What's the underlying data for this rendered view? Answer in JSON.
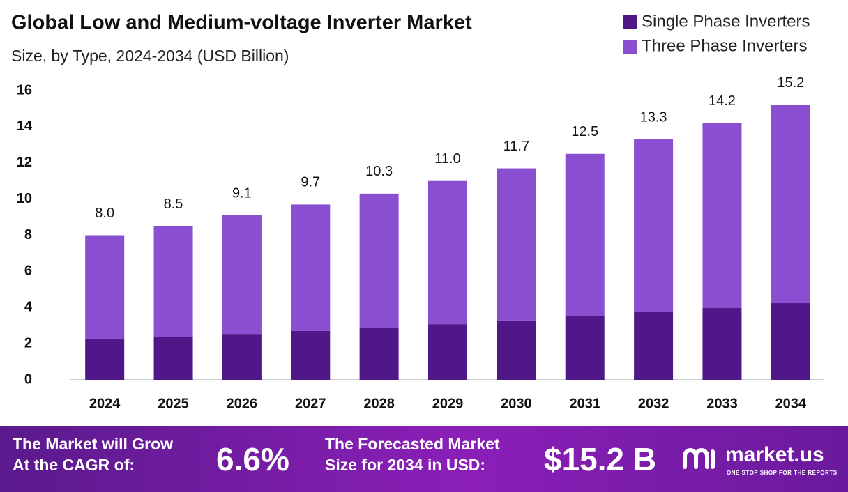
{
  "chart_data": {
    "type": "stacked_bar",
    "title": "Global Low and Medium-voltage Inverter Market",
    "subtitle": "Size, by Type, 2024-2034 (USD Billion)",
    "categories": [
      "2024",
      "2025",
      "2026",
      "2027",
      "2028",
      "2029",
      "2030",
      "2031",
      "2032",
      "2033",
      "2034"
    ],
    "series": [
      {
        "name": "Single Phase Inverters",
        "color": "#4f1787",
        "values": [
          2.24,
          2.39,
          2.54,
          2.7,
          2.89,
          3.08,
          3.28,
          3.51,
          3.74,
          3.97,
          4.24
        ]
      },
      {
        "name": "Three Phase Inverters",
        "color": "#8a4fd0",
        "values": [
          5.76,
          6.11,
          6.56,
          7.0,
          7.41,
          7.92,
          8.42,
          8.99,
          9.56,
          10.23,
          10.96
        ]
      }
    ],
    "totals": {
      "values": [
        8.0,
        8.5,
        9.1,
        9.7,
        10.3,
        11.0,
        11.7,
        12.5,
        13.3,
        14.2,
        15.2
      ],
      "value_labels": [
        "8.0",
        "8.5",
        "9.1",
        "9.7",
        "10.3",
        "11.0",
        "11.7",
        "12.5",
        "13.3",
        "14.2",
        "15.2"
      ]
    },
    "ylim": [
      0,
      16
    ],
    "yticks": [
      0,
      2,
      4,
      6,
      8,
      10,
      12,
      14,
      16
    ],
    "grid": false,
    "legend": "top-right"
  },
  "footer": {
    "cagr_text": [
      "The Market will Grow",
      "At the CAGR of:"
    ],
    "cagr_value": "6.6%",
    "forecast_text": [
      "The Forecasted Market",
      "Size for 2034 in USD:"
    ],
    "forecast_value": "$15.2 B",
    "brand": "market.us",
    "tagline": "ONE STOP SHOP FOR THE REPORTS"
  }
}
